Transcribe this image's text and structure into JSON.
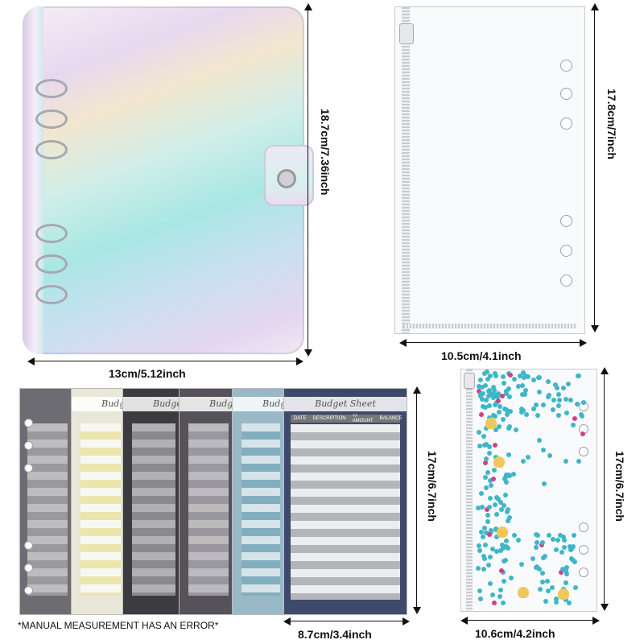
{
  "binder": {
    "width_label": "13cm/5.12inch",
    "height_label": "18.7cm/7.36inch"
  },
  "clear_pouch": {
    "width_label": "10.5cm/4.1inch",
    "height_label": "17.8cm/7inch"
  },
  "budget_sheets": {
    "width_label": "8.7cm/3.4inch",
    "height_label": "17cm/6.7inch",
    "sheet_title": "Budget Sheet",
    "columns": [
      "DATE",
      "DESCRIPTION",
      "+/-AMOUNT",
      "BALANCE"
    ]
  },
  "sequin_pouch": {
    "width_label": "10.6cm/4.2inch",
    "height_label": "17cm/6.7inch"
  },
  "note": "*MANUAL MEASUREMENT HAS AN ERROR*",
  "colors": {
    "sequin": "#3eb6c8",
    "shell": "#f0c85a",
    "dim_line": "#111111"
  }
}
